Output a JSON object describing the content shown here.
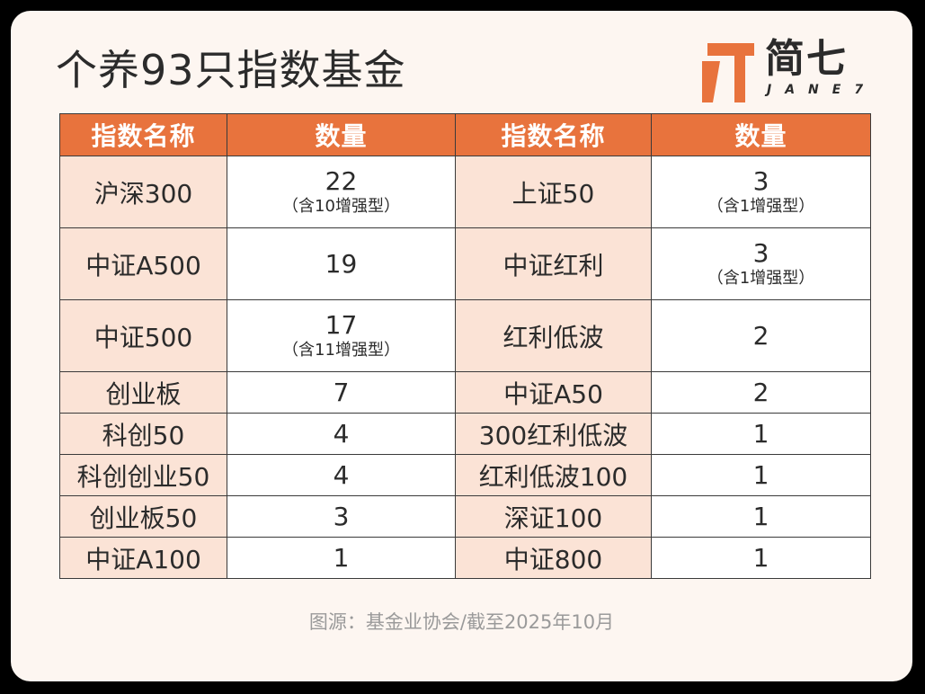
{
  "title": "个养93只指数基金",
  "logo": {
    "cn": "简七",
    "en": "JANE7",
    "color": "#e8733d"
  },
  "table": {
    "headers": [
      "指数名称",
      "数量",
      "指数名称",
      "数量"
    ],
    "rows": [
      {
        "left_name": "沪深300",
        "left_count": "22",
        "left_note": "（含10增强型）",
        "right_name": "上证50",
        "right_count": "3",
        "right_note": "（含1增强型）"
      },
      {
        "left_name": "中证A500",
        "left_count": "19",
        "left_note": "",
        "right_name": "中证红利",
        "right_count": "3",
        "right_note": "（含1增强型）"
      },
      {
        "left_name": "中证500",
        "left_count": "17",
        "left_note": "（含11增强型）",
        "right_name": "红利低波",
        "right_count": "2",
        "right_note": ""
      },
      {
        "left_name": "创业板",
        "left_count": "7",
        "left_note": "",
        "right_name": "中证A50",
        "right_count": "2",
        "right_note": ""
      },
      {
        "left_name": "科创50",
        "left_count": "4",
        "left_note": "",
        "right_name": "300红利低波",
        "right_count": "1",
        "right_note": ""
      },
      {
        "left_name": "科创创业50",
        "left_count": "4",
        "left_note": "",
        "right_name": "红利低波100",
        "right_count": "1",
        "right_note": ""
      },
      {
        "left_name": "创业板50",
        "left_count": "3",
        "left_note": "",
        "right_name": "深证100",
        "right_count": "1",
        "right_note": ""
      },
      {
        "left_name": "中证A100",
        "left_count": "1",
        "left_note": "",
        "right_name": "中证800",
        "right_count": "1",
        "right_note": ""
      }
    ]
  },
  "footer": "图源：基金业协会/截至2025年10月",
  "colors": {
    "header_bg": "#e8733d",
    "name_bg": "#fbe3d6",
    "card_bg": "#fdf6f1"
  }
}
